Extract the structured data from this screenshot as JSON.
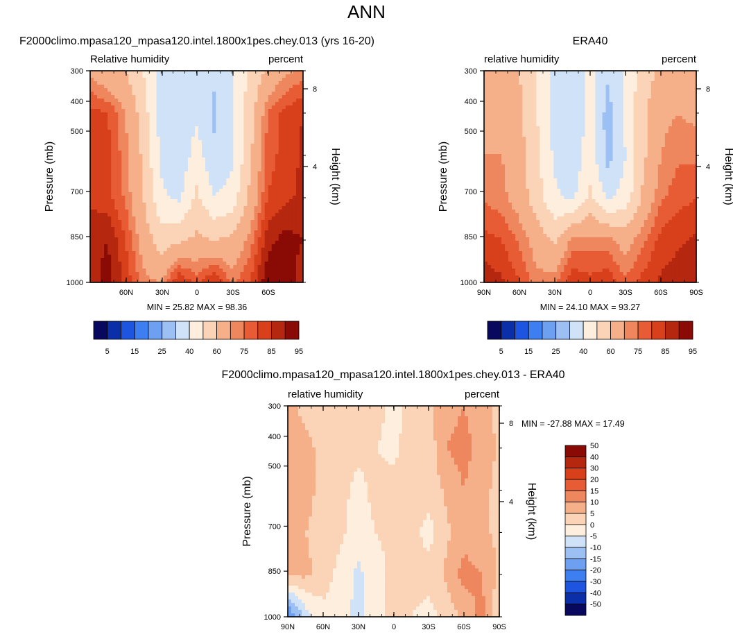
{
  "figure": {
    "title": "ANN"
  },
  "chart_data": [
    {
      "type": "heatmap",
      "title": "F2000climo.mpasa120_mpasa120.intel.1800x1pes.chey.013 (yrs 16-20)",
      "left_label": "Relative humidity",
      "right_label": "percent",
      "ylabel": "Pressure (mb)",
      "ylabel_right": "Height (km)",
      "y_ticks": [
        "300",
        "400",
        "500",
        "700",
        "850",
        "1000"
      ],
      "y_ticks_right": [
        "8",
        "4"
      ],
      "x_ticks": [
        "60N",
        "30N",
        "0",
        "30S",
        "60S"
      ],
      "stats": "MIN =  25.82  MAX =  98.36",
      "colorbar_levels": [
        "5",
        "15",
        "25",
        "40",
        "60",
        "75",
        "85",
        "95"
      ],
      "colorbar_colors": [
        "#08085e",
        "#0a2fa8",
        "#1e55e0",
        "#3d7ef0",
        "#6ea0f2",
        "#9cc0f4",
        "#cfe2f8",
        "#fdeedd",
        "#fbd3b6",
        "#f5b08a",
        "#ef875e",
        "#e85c35",
        "#d8401c",
        "#b6270f",
        "#8a0a05"
      ],
      "x": [
        -90,
        -75,
        -60,
        -45,
        -30,
        -15,
        0,
        15,
        30,
        45,
        60,
        75,
        90
      ],
      "y": [
        300,
        400,
        500,
        700,
        850,
        1000
      ],
      "z": [
        [
          68,
          62,
          60,
          50,
          38,
          32,
          34,
          32,
          38,
          52,
          62,
          68,
          72
        ],
        [
          82,
          80,
          70,
          55,
          35,
          30,
          38,
          28,
          40,
          55,
          75,
          82,
          85
        ],
        [
          84,
          82,
          72,
          58,
          38,
          32,
          45,
          32,
          38,
          58,
          78,
          82,
          86
        ],
        [
          84,
          82,
          74,
          60,
          42,
          38,
          52,
          40,
          44,
          62,
          80,
          84,
          86
        ],
        [
          88,
          90,
          80,
          66,
          55,
          58,
          62,
          60,
          62,
          72,
          88,
          92,
          90
        ],
        [
          88,
          92,
          84,
          72,
          70,
          86,
          78,
          86,
          74,
          80,
          94,
          96,
          86
        ]
      ]
    },
    {
      "type": "heatmap",
      "title": "ERA40",
      "left_label": "relative humidity",
      "right_label": "percent",
      "ylabel": "Pressure (mb)",
      "ylabel_right": "Height (km)",
      "y_ticks": [
        "300",
        "400",
        "500",
        "700",
        "850",
        "1000"
      ],
      "y_ticks_right": [
        "8",
        "4"
      ],
      "x_ticks": [
        "90N",
        "60N",
        "30N",
        "0",
        "30S",
        "60S",
        "90S"
      ],
      "stats": "MIN =  24.10  MAX =  93.27",
      "colorbar_levels": [
        "5",
        "15",
        "25",
        "40",
        "60",
        "75",
        "85",
        "95"
      ],
      "colorbar_colors": [
        "#08085e",
        "#0a2fa8",
        "#1e55e0",
        "#3d7ef0",
        "#6ea0f2",
        "#9cc0f4",
        "#cfe2f8",
        "#fdeedd",
        "#fbd3b6",
        "#f5b08a",
        "#ef875e",
        "#e85c35",
        "#d8401c",
        "#b6270f",
        "#8a0a05"
      ],
      "x": [
        -90,
        -75,
        -60,
        -45,
        -30,
        -15,
        0,
        15,
        30,
        45,
        60,
        75,
        90
      ],
      "y": [
        300,
        400,
        500,
        700,
        850,
        1000
      ],
      "z": [
        [
          62,
          64,
          60,
          50,
          38,
          35,
          42,
          32,
          42,
          55,
          62,
          62,
          62
        ],
        [
          66,
          68,
          62,
          50,
          36,
          32,
          44,
          26,
          42,
          58,
          68,
          70,
          68
        ],
        [
          70,
          70,
          64,
          52,
          38,
          32,
          46,
          26,
          40,
          58,
          70,
          74,
          74
        ],
        [
          74,
          72,
          66,
          54,
          42,
          38,
          52,
          38,
          44,
          62,
          74,
          78,
          80
        ],
        [
          82,
          80,
          74,
          66,
          58,
          72,
          72,
          72,
          66,
          74,
          82,
          84,
          86
        ],
        [
          88,
          86,
          80,
          72,
          74,
          84,
          82,
          84,
          76,
          82,
          86,
          88,
          88
        ]
      ]
    },
    {
      "type": "heatmap",
      "title": "F2000climo.mpasa120_mpasa120.intel.1800x1pes.chey.013 - ERA40",
      "left_label": "relative humidity",
      "right_label": "percent",
      "ylabel": "Pressure (mb)",
      "ylabel_right": "Height (km)",
      "y_ticks": [
        "300",
        "400",
        "500",
        "700",
        "850",
        "1000"
      ],
      "y_ticks_right": [
        "8",
        "4"
      ],
      "x_ticks": [
        "90N",
        "60N",
        "30N",
        "0",
        "30S",
        "60S",
        "90S"
      ],
      "stats": "MIN = -27.88  MAX =  17.49",
      "colorbar_levels": [
        "50",
        "40",
        "30",
        "20",
        "15",
        "10",
        "5",
        "0",
        "-5",
        "-10",
        "-15",
        "-20",
        "-30",
        "-40",
        "-50"
      ],
      "colorbar_colors": [
        "#8a0a05",
        "#b6270f",
        "#d8401c",
        "#e85c35",
        "#ef875e",
        "#f5b08a",
        "#fbd3b6",
        "#fdeedd",
        "#cfe2f8",
        "#9cc0f4",
        "#6ea0f2",
        "#3d7ef0",
        "#1e55e0",
        "#0a2fa8",
        "#08085e"
      ],
      "x": [
        -90,
        -75,
        -60,
        -45,
        -30,
        -15,
        0,
        15,
        30,
        45,
        60,
        75,
        90
      ],
      "y": [
        300,
        400,
        500,
        700,
        850,
        1000
      ],
      "z": [
        [
          6,
          4,
          2,
          4,
          3,
          3,
          -3,
          3,
          4,
          8,
          10,
          6,
          4
        ],
        [
          6,
          6,
          4,
          2,
          2,
          0,
          -2,
          4,
          2,
          10,
          12,
          8,
          4
        ],
        [
          6,
          6,
          4,
          2,
          -2,
          2,
          3,
          4,
          2,
          6,
          10,
          6,
          4
        ],
        [
          5,
          5,
          4,
          1,
          -3,
          0,
          2,
          2,
          -2,
          4,
          8,
          6,
          4
        ],
        [
          6,
          6,
          3,
          -2,
          -6,
          -3,
          2,
          2,
          2,
          6,
          12,
          10,
          4
        ],
        [
          -22,
          -8,
          -2,
          -4,
          -6,
          -2,
          2,
          0,
          -2,
          2,
          6,
          12,
          0
        ]
      ]
    }
  ]
}
